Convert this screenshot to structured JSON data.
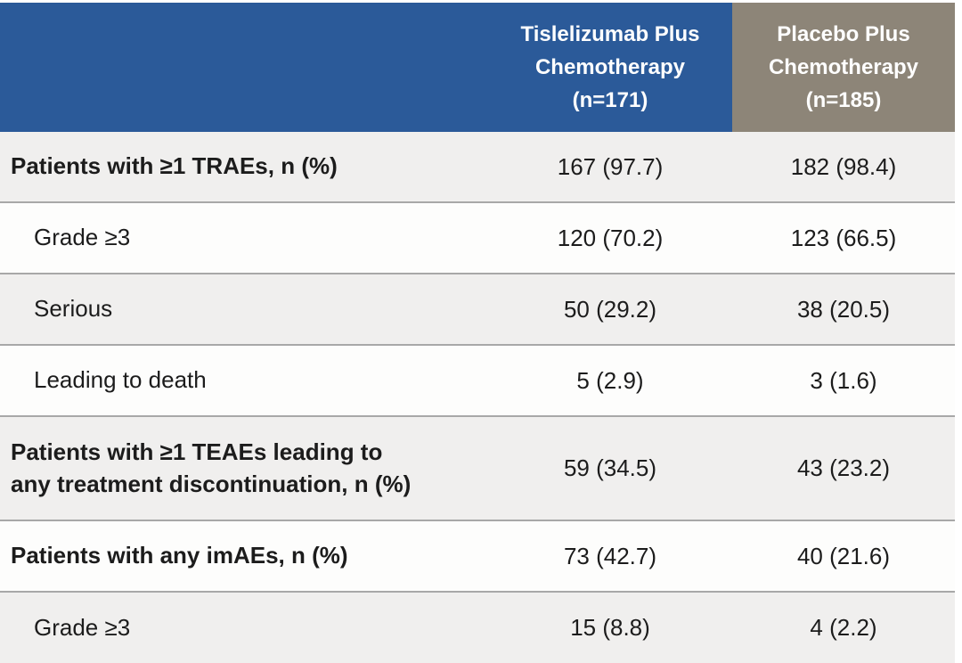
{
  "colors": {
    "page_bg": "#ffffff",
    "header_blue": "#2b5a99",
    "header_taupe": "#8d8578",
    "header_text": "#ffffff",
    "row_shaded": "#f0efee",
    "row_white": "#fdfdfc",
    "separator": "#a8a8a8",
    "body_text": "#1c1c1c"
  },
  "table": {
    "header": {
      "blank_label": "",
      "columns": [
        {
          "name": "tislelizumab-plus-chemotherapy",
          "lines": [
            "Tislelizumab Plus",
            "Chemotherapy",
            "(n=171)"
          ]
        },
        {
          "name": "placebo-plus-chemotherapy",
          "lines": [
            "Placebo Plus",
            "Chemotherapy",
            "(n=185)"
          ]
        }
      ]
    },
    "rows": [
      {
        "label_lines": [
          "Patients with ≥1 TRAEs, n (%)"
        ],
        "values": [
          "167 (97.7)",
          "182 (98.4)"
        ]
      },
      {
        "label_lines": [
          "Grade ≥3"
        ],
        "values": [
          "120 (70.2)",
          "123 (66.5)"
        ]
      },
      {
        "label_lines": [
          "Serious"
        ],
        "values": [
          "50 (29.2)",
          "38 (20.5)"
        ]
      },
      {
        "label_lines": [
          "Leading to death"
        ],
        "values": [
          "5 (2.9)",
          "3 (1.6)"
        ]
      },
      {
        "label_lines": [
          "Patients with ≥1 TEAEs leading to",
          "any treatment discontinuation, n (%)"
        ],
        "values": [
          "59 (34.5)",
          "43 (23.2)"
        ]
      },
      {
        "label_lines": [
          "Patients with any imAEs, n (%)"
        ],
        "values": [
          "73 (42.7)",
          "40 (21.6)"
        ]
      },
      {
        "label_lines": [
          "Grade ≥3"
        ],
        "values": [
          "15 (8.8)",
          "4 (2.2)"
        ]
      }
    ]
  },
  "chart_data": {
    "type": "table",
    "columns": [
      "",
      "Tislelizumab Plus Chemotherapy (n=171)",
      "Placebo Plus Chemotherapy (n=185)"
    ],
    "rows": [
      [
        "Patients with ≥1 TRAEs, n (%)",
        "167 (97.7)",
        "182 (98.4)"
      ],
      [
        "Grade ≥3",
        "120 (70.2)",
        "123 (66.5)"
      ],
      [
        "Serious",
        "50 (29.2)",
        "38 (20.5)"
      ],
      [
        "Leading to death",
        "5 (2.9)",
        "3 (1.6)"
      ],
      [
        "Patients with ≥1 TEAEs leading to any treatment discontinuation, n (%)",
        "59 (34.5)",
        "43 (23.2)"
      ],
      [
        "Patients with any imAEs, n (%)",
        "73 (42.7)",
        "40 (21.6)"
      ],
      [
        "Grade ≥3",
        "15 (8.8)",
        "4 (2.2)"
      ]
    ]
  }
}
